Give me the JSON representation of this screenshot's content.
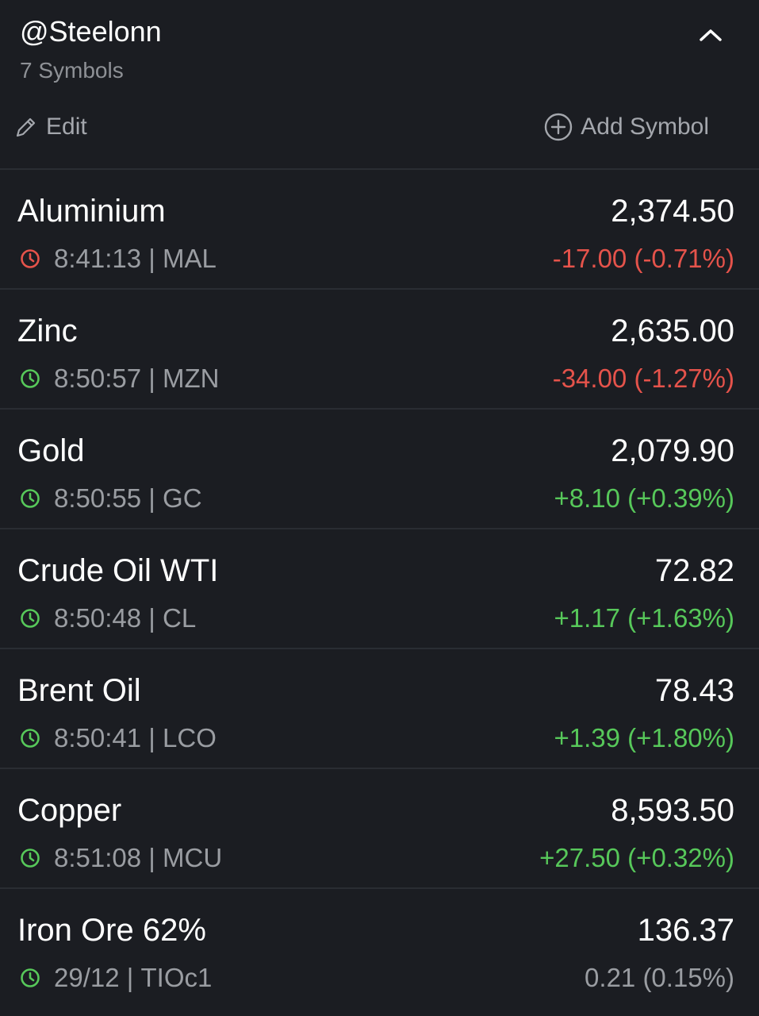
{
  "watchlist": {
    "title": "@Steelonn",
    "count": "7 Symbols",
    "edit_label": "Edit",
    "add_label": "Add Symbol"
  },
  "colors": {
    "negative": "#e5534b",
    "positive": "#57c85a",
    "neutral": "#9a9da2",
    "background": "#1b1d22"
  },
  "items": [
    {
      "name": "Aluminium",
      "price": "2,374.50",
      "time": "8:41:13",
      "symbol": "MAL",
      "sep": " | ",
      "change": "-17.00 (-0.71%)",
      "trend": "neg",
      "clock": "red-clock-icon"
    },
    {
      "name": "Zinc",
      "price": "2,635.00",
      "time": "8:50:57",
      "symbol": "MZN",
      "sep": " | ",
      "change": "-34.00 (-1.27%)",
      "trend": "neg",
      "clock": "green-clock-icon"
    },
    {
      "name": "Gold",
      "price": "2,079.90",
      "time": "8:50:55",
      "symbol": "GC",
      "sep": " | ",
      "change": "+8.10 (+0.39%)",
      "trend": "pos",
      "clock": "green-clock-icon"
    },
    {
      "name": "Crude Oil WTI",
      "price": "72.82",
      "time": "8:50:48",
      "symbol": "CL",
      "sep": " | ",
      "change": "+1.17 (+1.63%)",
      "trend": "pos",
      "clock": "green-clock-icon"
    },
    {
      "name": "Brent Oil",
      "price": "78.43",
      "time": "8:50:41",
      "symbol": "LCO",
      "sep": " | ",
      "change": "+1.39 (+1.80%)",
      "trend": "pos",
      "clock": "green-clock-icon"
    },
    {
      "name": "Copper",
      "price": "8,593.50",
      "time": "8:51:08",
      "symbol": "MCU",
      "sep": " | ",
      "change": "+27.50 (+0.32%)",
      "trend": "pos",
      "clock": "green-clock-icon"
    },
    {
      "name": "Iron Ore 62%",
      "price": "136.37",
      "time": "29/12",
      "symbol": "TIOc1",
      "sep": " | ",
      "change": "0.21 (0.15%)",
      "trend": "neu",
      "clock": "green-clock-icon"
    }
  ]
}
